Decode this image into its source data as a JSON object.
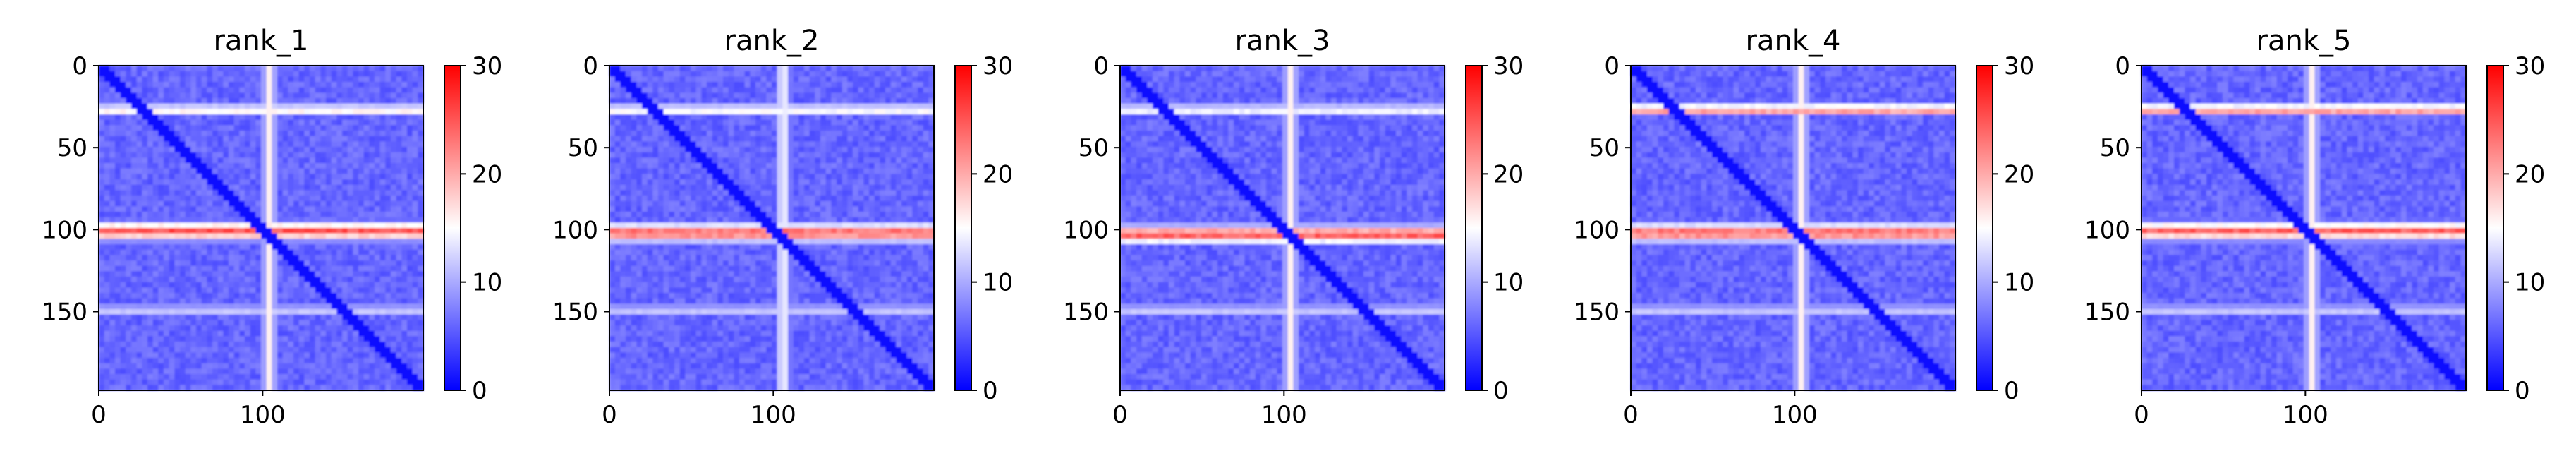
{
  "chart_data": [
    {
      "type": "heatmap",
      "title": "rank_1",
      "x_ticks": [
        0,
        100
      ],
      "y_ticks": [
        0,
        50,
        100,
        150
      ],
      "x_range": [
        0,
        198
      ],
      "y_range": [
        0,
        198
      ],
      "colorbar": {
        "ticks": [
          0,
          10,
          20,
          30
        ],
        "range": [
          0,
          30
        ],
        "colormap": "bwr"
      },
      "features": {
        "bands": [
          {
            "row": 27,
            "width": 4,
            "value": 20
          },
          {
            "row": 101,
            "width": 7,
            "value": 28
          },
          {
            "row": 149,
            "width": 3,
            "value": 16
          }
        ],
        "column_stripe": {
          "col": 104,
          "width": 5,
          "value": 16
        },
        "diagonal_value": 1,
        "background_value": 6
      }
    },
    {
      "type": "heatmap",
      "title": "rank_2",
      "x_ticks": [
        0,
        100
      ],
      "y_ticks": [
        0,
        50,
        100,
        150
      ],
      "x_range": [
        0,
        198
      ],
      "y_range": [
        0,
        198
      ],
      "colorbar": {
        "ticks": [
          0,
          10,
          20,
          30
        ],
        "range": [
          0,
          30
        ],
        "colormap": "bwr"
      },
      "features": {
        "bands": [
          {
            "row": 27,
            "width": 4,
            "value": 19
          },
          {
            "row": 102,
            "width": 7,
            "value": 29
          },
          {
            "row": 149,
            "width": 3,
            "value": 16
          }
        ],
        "column_stripe": {
          "col": 106,
          "width": 5,
          "value": 16
        },
        "diagonal_value": 1,
        "background_value": 6
      }
    },
    {
      "type": "heatmap",
      "title": "rank_3",
      "x_ticks": [
        0,
        100
      ],
      "y_ticks": [
        0,
        50,
        100,
        150
      ],
      "x_range": [
        0,
        198
      ],
      "y_range": [
        0,
        198
      ],
      "colorbar": {
        "ticks": [
          0,
          10,
          20,
          30
        ],
        "range": [
          0,
          30
        ],
        "colormap": "bwr"
      },
      "features": {
        "bands": [
          {
            "row": 27,
            "width": 4,
            "value": 18
          },
          {
            "row": 103,
            "width": 7,
            "value": 29
          },
          {
            "row": 149,
            "width": 3,
            "value": 16
          }
        ],
        "column_stripe": {
          "col": 104,
          "width": 5,
          "value": 16
        },
        "diagonal_value": 1,
        "background_value": 6
      }
    },
    {
      "type": "heatmap",
      "title": "rank_4",
      "x_ticks": [
        0,
        100
      ],
      "y_ticks": [
        0,
        50,
        100,
        150
      ],
      "x_range": [
        0,
        198
      ],
      "y_range": [
        0,
        198
      ],
      "colorbar": {
        "ticks": [
          0,
          10,
          20,
          30
        ],
        "range": [
          0,
          30
        ],
        "colormap": "bwr"
      },
      "features": {
        "bands": [
          {
            "row": 27,
            "width": 4,
            "value": 27
          },
          {
            "row": 102,
            "width": 7,
            "value": 29
          },
          {
            "row": 149,
            "width": 3,
            "value": 16
          }
        ],
        "column_stripe": {
          "col": 104,
          "width": 5,
          "value": 16
        },
        "diagonal_value": 1,
        "background_value": 6
      }
    },
    {
      "type": "heatmap",
      "title": "rank_5",
      "x_ticks": [
        0,
        100
      ],
      "y_ticks": [
        0,
        50,
        100,
        150
      ],
      "x_range": [
        0,
        198
      ],
      "y_range": [
        0,
        198
      ],
      "colorbar": {
        "ticks": [
          0,
          10,
          20,
          30
        ],
        "range": [
          0,
          30
        ],
        "colormap": "bwr"
      },
      "features": {
        "bands": [
          {
            "row": 27,
            "width": 4,
            "value": 27
          },
          {
            "row": 101,
            "width": 7,
            "value": 27
          },
          {
            "row": 149,
            "width": 3,
            "value": 16
          }
        ],
        "column_stripe": {
          "col": 104,
          "width": 5,
          "value": 16
        },
        "diagonal_value": 1,
        "background_value": 6
      }
    }
  ]
}
